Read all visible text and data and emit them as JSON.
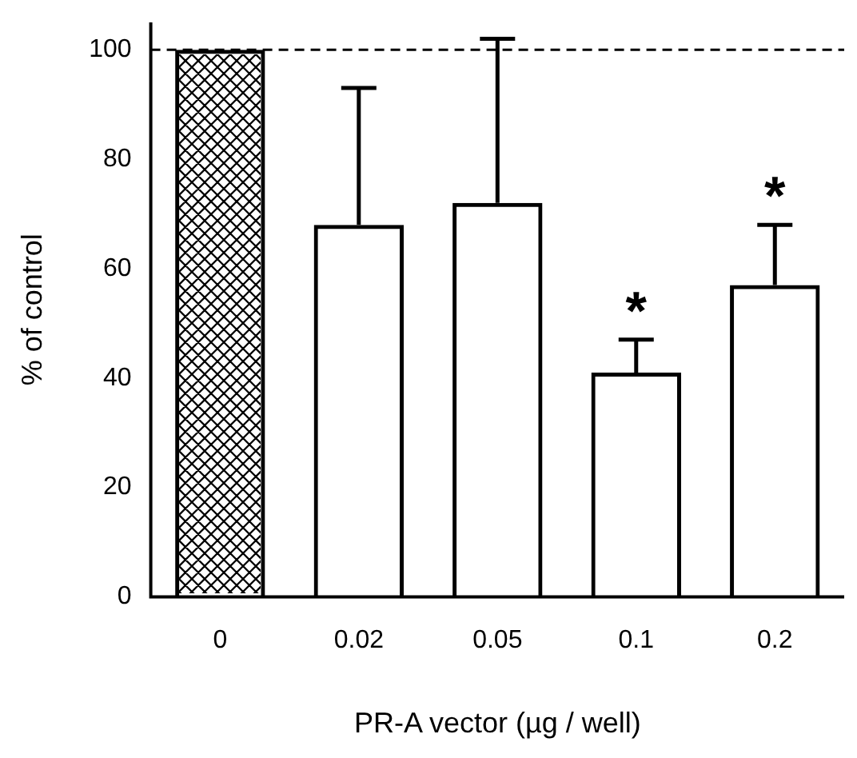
{
  "chart_data": {
    "type": "bar",
    "xlabel": "PR-A vector (µg / well)",
    "ylabel": "% of control",
    "categories": [
      "0",
      "0.02",
      "0.05",
      "0.1",
      "0.2"
    ],
    "values": [
      100,
      68,
      72,
      41,
      57
    ],
    "colors": [
      "#000000",
      "#000000",
      "#000000",
      "#000000",
      "#000000"
    ],
    "errors": [
      null,
      [
        68,
        93
      ],
      [
        72,
        102
      ],
      [
        41,
        47
      ],
      [
        57,
        68
      ]
    ],
    "ylim": [
      0,
      105
    ],
    "yticks": [
      0,
      20,
      40,
      60,
      80,
      100
    ],
    "grid": false,
    "legend": false,
    "ref_lines": [
      {
        "axis": "y",
        "value": 100,
        "color": "#000000",
        "line_style": "dashed"
      }
    ],
    "annotations": [
      "*",
      "*"
    ]
  }
}
